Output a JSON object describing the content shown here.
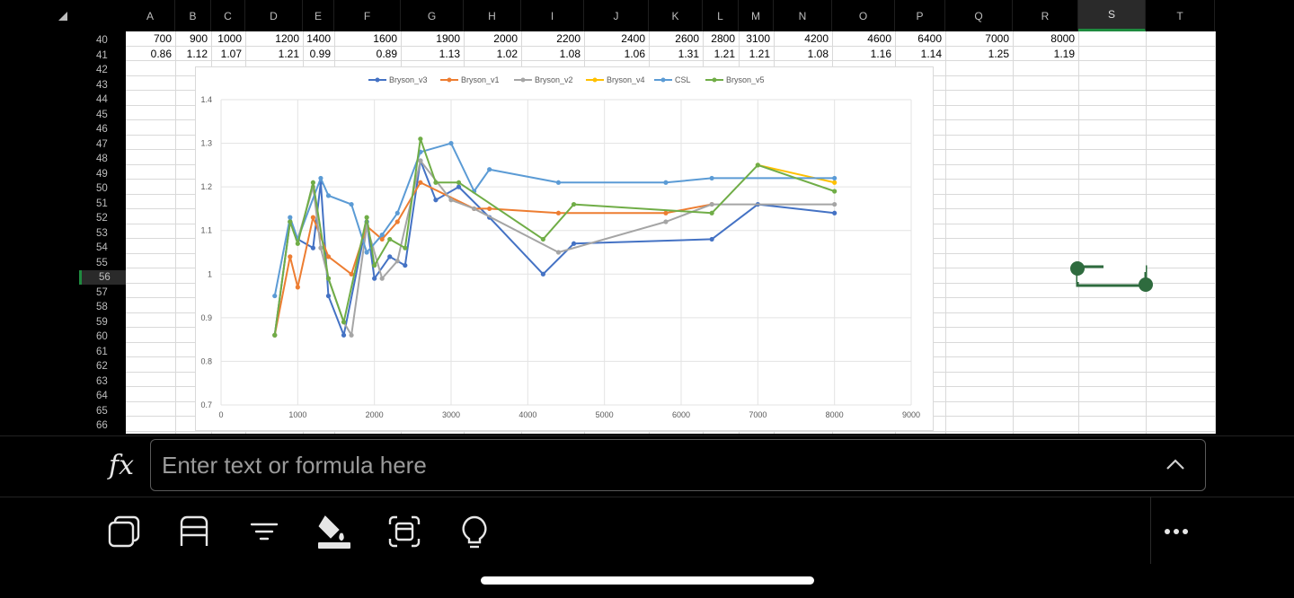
{
  "columns": [
    "A",
    "B",
    "C",
    "D",
    "E",
    "F",
    "G",
    "H",
    "I",
    "J",
    "K",
    "L",
    "M",
    "N",
    "O",
    "P",
    "Q",
    "R",
    "S",
    "T"
  ],
  "selected_column": "S",
  "rows": [
    "40",
    "41",
    "42",
    "43",
    "44",
    "45",
    "46",
    "47",
    "48",
    "49",
    "50",
    "51",
    "52",
    "53",
    "54",
    "55",
    "56",
    "57",
    "58",
    "59",
    "60",
    "61",
    "62",
    "63",
    "64",
    "65",
    "66"
  ],
  "selected_row": "56",
  "row40_values": [
    "700",
    "900",
    "1000",
    "1200",
    "1400",
    "1600",
    "1900",
    "2000",
    "2200",
    "2400",
    "2600",
    "2800",
    "3100",
    "4200",
    "4600",
    "6400",
    "7000",
    "8000"
  ],
  "row41_values": [
    "0.86",
    "1.12",
    "1.07",
    "1.21",
    "0.99",
    "0.89",
    "1.13",
    "1.02",
    "1.08",
    "1.06",
    "1.31",
    "1.21",
    "1.21",
    "1.08",
    "1.16",
    "1.14",
    "1.25",
    "1.19"
  ],
  "formula_bar": {
    "fx_label": "fx",
    "placeholder": "Enter text or formula here"
  },
  "toolbar": {
    "icons": [
      "copy-icon",
      "table-icon",
      "filter-icon",
      "fill-color-icon",
      "screen-capture-icon",
      "lightbulb-icon",
      "more-icon"
    ]
  },
  "colors": {
    "selection": "#1f8a3f",
    "handle": "#2e6b3e"
  },
  "chart_data": {
    "type": "line",
    "xlim": [
      0,
      9000
    ],
    "ylim": [
      0.7,
      1.4
    ],
    "x_ticks": [
      "0",
      "1000",
      "2000",
      "3000",
      "4000",
      "5000",
      "6000",
      "7000",
      "8000",
      "9000"
    ],
    "y_ticks": [
      "0.7",
      "0.8",
      "0.9",
      "1",
      "1.1",
      "1.2",
      "1.3",
      "1.4"
    ],
    "grid": true,
    "legend_position": "top",
    "series": [
      {
        "name": "Bryson_v3",
        "color": "#4472c4",
        "points": [
          [
            700,
            0.86
          ],
          [
            900,
            1.12
          ],
          [
            1000,
            1.08
          ],
          [
            1200,
            1.06
          ],
          [
            1300,
            1.21
          ],
          [
            1400,
            0.95
          ],
          [
            1600,
            0.86
          ],
          [
            1900,
            1.12
          ],
          [
            2000,
            0.99
          ],
          [
            2200,
            1.04
          ],
          [
            2400,
            1.02
          ],
          [
            2600,
            1.26
          ],
          [
            2800,
            1.17
          ],
          [
            3100,
            1.2
          ],
          [
            3500,
            1.13
          ],
          [
            4200,
            1.0
          ],
          [
            4600,
            1.07
          ],
          [
            6400,
            1.08
          ],
          [
            7000,
            1.16
          ],
          [
            8000,
            1.14
          ]
        ]
      },
      {
        "name": "Bryson_v1",
        "color": "#ed7d31",
        "points": [
          [
            700,
            0.86
          ],
          [
            900,
            1.04
          ],
          [
            1000,
            0.97
          ],
          [
            1200,
            1.13
          ],
          [
            1400,
            1.04
          ],
          [
            1700,
            1.0
          ],
          [
            1900,
            1.11
          ],
          [
            2100,
            1.08
          ],
          [
            2300,
            1.12
          ],
          [
            2600,
            1.21
          ],
          [
            3300,
            1.15
          ],
          [
            3500,
            1.15
          ],
          [
            4400,
            1.14
          ],
          [
            5800,
            1.14
          ],
          [
            6400,
            1.16
          ]
        ]
      },
      {
        "name": "Bryson_v2",
        "color": "#a5a5a5",
        "points": [
          [
            700,
            0.86
          ],
          [
            900,
            1.12
          ],
          [
            1000,
            1.08
          ],
          [
            1200,
            1.2
          ],
          [
            1300,
            1.06
          ],
          [
            1400,
            0.99
          ],
          [
            1600,
            0.89
          ],
          [
            1700,
            0.86
          ],
          [
            1900,
            1.11
          ],
          [
            2100,
            0.99
          ],
          [
            2300,
            1.03
          ],
          [
            2600,
            1.26
          ],
          [
            3000,
            1.17
          ],
          [
            3300,
            1.15
          ],
          [
            4400,
            1.05
          ],
          [
            5800,
            1.12
          ],
          [
            6400,
            1.16
          ],
          [
            8000,
            1.16
          ]
        ]
      },
      {
        "name": "Bryson_v4",
        "color": "#ffc000",
        "points": [
          [
            7000,
            1.25
          ],
          [
            8000,
            1.21
          ]
        ]
      },
      {
        "name": "CSL",
        "color": "#5b9bd5",
        "points": [
          [
            700,
            0.95
          ],
          [
            900,
            1.13
          ],
          [
            1000,
            1.08
          ],
          [
            1300,
            1.22
          ],
          [
            1400,
            1.18
          ],
          [
            1700,
            1.16
          ],
          [
            1900,
            1.05
          ],
          [
            2100,
            1.09
          ],
          [
            2300,
            1.14
          ],
          [
            2600,
            1.28
          ],
          [
            3000,
            1.3
          ],
          [
            3300,
            1.19
          ],
          [
            3500,
            1.24
          ],
          [
            4400,
            1.21
          ],
          [
            5800,
            1.21
          ],
          [
            6400,
            1.22
          ],
          [
            8000,
            1.22
          ]
        ]
      },
      {
        "name": "Bryson_v5",
        "color": "#70ad47",
        "points": [
          [
            700,
            0.86
          ],
          [
            900,
            1.12
          ],
          [
            1000,
            1.07
          ],
          [
            1200,
            1.21
          ],
          [
            1400,
            0.99
          ],
          [
            1600,
            0.89
          ],
          [
            1900,
            1.13
          ],
          [
            2000,
            1.02
          ],
          [
            2200,
            1.08
          ],
          [
            2400,
            1.06
          ],
          [
            2600,
            1.31
          ],
          [
            2800,
            1.21
          ],
          [
            3100,
            1.21
          ],
          [
            4200,
            1.08
          ],
          [
            4600,
            1.16
          ],
          [
            6400,
            1.14
          ],
          [
            7000,
            1.25
          ],
          [
            8000,
            1.19
          ]
        ]
      }
    ]
  }
}
